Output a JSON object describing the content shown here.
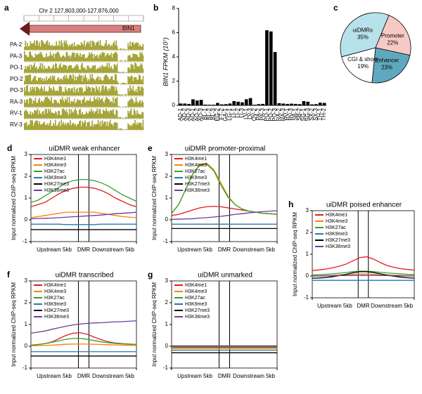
{
  "panel_a": {
    "label": "a",
    "title": "Chr 2 127,803,000-127,876,000",
    "gene_label": "BIN1",
    "tracks": [
      "PA-2",
      "PA-3",
      "PO-1",
      "PO-2",
      "PO-3",
      "RA-3",
      "RV-1",
      "RV-3"
    ],
    "track_color": "#a5a53b",
    "arrow_fill": "#d88080",
    "arrow_stroke": "#6a1b1b"
  },
  "panel_b": {
    "label": "b",
    "ylabel": "BIN1 FPKM (10^7)",
    "yticks": [
      0,
      2,
      4,
      6,
      8
    ],
    "ylim": [
      0,
      8
    ],
    "bar_color": "#000000",
    "categories": [
      "AD-1",
      "AD-2",
      "AD-3",
      "AO-1",
      "AO-2",
      "AO-3",
      "BL-1",
      "BL-2",
      "BL-3",
      "EG-2",
      "FT-2",
      "GA-1",
      "LG-1",
      "LI-1",
      "LI-2",
      "LI-3",
      "LV-1",
      "LV-3",
      "OV-2",
      "PA-2",
      "PA-3",
      "PO-1",
      "PO-2",
      "PO-3",
      "RA-2",
      "RA-3",
      "RV-1",
      "RV-3",
      "SB-1",
      "SB-2",
      "SG-1",
      "SG-3",
      "SX-2",
      "SX-3",
      "TH-1",
      "TH-2"
    ],
    "values": [
      0.15,
      0.15,
      0.12,
      0.5,
      0.4,
      0.45,
      0.06,
      0.05,
      0.05,
      0.2,
      0.08,
      0.1,
      0.15,
      0.35,
      0.3,
      0.25,
      0.5,
      0.6,
      0.05,
      0.1,
      0.12,
      6.2,
      6.1,
      4.4,
      0.18,
      0.15,
      0.12,
      0.14,
      0.12,
      0.1,
      0.35,
      0.3,
      0.08,
      0.1,
      0.22,
      0.2
    ]
  },
  "panel_c": {
    "label": "c",
    "slices": [
      {
        "label": "uiDMRs 35%",
        "value": 35,
        "color": "#b7e2eb"
      },
      {
        "label": "Promoter 22%",
        "value": 22,
        "color": "#f7c9c5"
      },
      {
        "label": "Enhancer 23%",
        "value": 23,
        "color": "#5fa9bf"
      },
      {
        "label": "CGI & shore 19%",
        "value": 19,
        "color": "#ffffff"
      }
    ],
    "stroke": "#000000",
    "label_fontsize": 8
  },
  "chip_panels": {
    "ylabel": "Input normalized ChIP-seq RPKM",
    "legend": [
      {
        "name": "H3K4me1",
        "color": "#e31a1c"
      },
      {
        "name": "H3K4me3",
        "color": "#ff7f00"
      },
      {
        "name": "H3K27ac",
        "color": "#33a02c"
      },
      {
        "name": "H3K9me3",
        "color": "#1f78b4"
      },
      {
        "name": "H3K27me3",
        "color": "#000000"
      },
      {
        "name": "H3K36me3",
        "color": "#6a3d9a"
      }
    ],
    "xlabels": [
      "Upstream 5kb",
      "DMR",
      "Downstream 5kb"
    ],
    "dmr_lines": "#000000",
    "panels": {
      "d": {
        "label": "d",
        "title": "uiDMR weak enhancer",
        "ylim": [
          -1,
          3
        ],
        "yticks": [
          -1,
          0,
          1,
          2,
          3
        ],
        "series": {
          "H3K4me1": [
            0.6,
            0.7,
            0.8,
            1.0,
            1.2,
            1.35,
            1.45,
            1.5,
            1.5,
            1.45,
            1.35,
            1.2,
            1.0,
            0.85,
            0.7,
            0.6
          ],
          "H3K4me3": [
            0.1,
            0.15,
            0.2,
            0.25,
            0.3,
            0.35,
            0.35,
            0.35,
            0.35,
            0.35,
            0.3,
            0.25,
            0.2,
            0.15,
            0.12,
            0.1
          ],
          "H3K27ac": [
            0.8,
            0.9,
            1.1,
            1.3,
            1.5,
            1.7,
            1.8,
            1.85,
            1.85,
            1.8,
            1.7,
            1.55,
            1.35,
            1.15,
            1.0,
            0.85
          ],
          "H3K9me3": [
            -0.2,
            -0.2,
            -0.2,
            -0.2,
            -0.2,
            -0.22,
            -0.22,
            -0.22,
            -0.22,
            -0.22,
            -0.2,
            -0.2,
            -0.2,
            -0.2,
            -0.2,
            -0.2
          ],
          "H3K27me3": [
            -0.45,
            -0.45,
            -0.45,
            -0.45,
            -0.45,
            -0.45,
            -0.45,
            -0.45,
            -0.45,
            -0.45,
            -0.45,
            -0.45,
            -0.45,
            -0.45,
            -0.45,
            -0.45
          ],
          "H3K36me3": [
            0.05,
            0.06,
            0.07,
            0.08,
            0.1,
            0.12,
            0.14,
            0.16,
            0.18,
            0.2,
            0.22,
            0.25,
            0.28,
            0.3,
            0.32,
            0.35
          ]
        }
      },
      "e": {
        "label": "e",
        "title": "uiDMR promoter-proximal",
        "ylim": [
          -1,
          3
        ],
        "yticks": [
          -1,
          0,
          1,
          2,
          3
        ],
        "series": {
          "H3K4me1": [
            0.2,
            0.25,
            0.35,
            0.45,
            0.55,
            0.6,
            0.62,
            0.6,
            0.55,
            0.5,
            0.45,
            0.4,
            0.35,
            0.3,
            0.28,
            0.25
          ],
          "H3K4me3": [
            0.3,
            0.7,
            1.4,
            2.1,
            2.55,
            2.6,
            2.3,
            1.7,
            1.1,
            0.7,
            0.5,
            0.4,
            0.35,
            0.3,
            0.28,
            0.25
          ],
          "H3K27ac": [
            0.3,
            0.7,
            1.4,
            2.1,
            2.5,
            2.55,
            2.25,
            1.6,
            1.05,
            0.7,
            0.5,
            0.4,
            0.35,
            0.3,
            0.28,
            0.25
          ],
          "H3K9me3": [
            -0.2,
            -0.2,
            -0.2,
            -0.2,
            -0.2,
            -0.2,
            -0.2,
            -0.2,
            -0.2,
            -0.2,
            -0.2,
            -0.2,
            -0.2,
            -0.2,
            -0.2,
            -0.2
          ],
          "H3K27me3": [
            -0.4,
            -0.4,
            -0.4,
            -0.4,
            -0.4,
            -0.4,
            -0.4,
            -0.4,
            -0.4,
            -0.4,
            -0.4,
            -0.4,
            -0.4,
            -0.4,
            -0.4,
            -0.4
          ],
          "H3K36me3": [
            0.02,
            0.03,
            0.04,
            0.05,
            0.08,
            0.1,
            0.13,
            0.16,
            0.2,
            0.25,
            0.28,
            0.32,
            0.35,
            0.38,
            0.4,
            0.42
          ]
        }
      },
      "f": {
        "label": "f",
        "title": "uiDMR transcribed",
        "ylim": [
          -1,
          3
        ],
        "yticks": [
          -1,
          0,
          1,
          2,
          3
        ],
        "series": {
          "H3K4me1": [
            0.05,
            0.08,
            0.12,
            0.2,
            0.35,
            0.5,
            0.6,
            0.62,
            0.55,
            0.42,
            0.3,
            0.2,
            0.15,
            0.12,
            0.1,
            0.08
          ],
          "H3K4me3": [
            0.02,
            0.03,
            0.04,
            0.05,
            0.07,
            0.09,
            0.1,
            0.1,
            0.1,
            0.09,
            0.08,
            0.07,
            0.06,
            0.05,
            0.04,
            0.03
          ],
          "H3K27ac": [
            0.05,
            0.08,
            0.12,
            0.18,
            0.25,
            0.32,
            0.36,
            0.36,
            0.32,
            0.26,
            0.2,
            0.16,
            0.13,
            0.11,
            0.09,
            0.08
          ],
          "H3K9me3": [
            -0.25,
            -0.25,
            -0.25,
            -0.25,
            -0.25,
            -0.25,
            -0.25,
            -0.25,
            -0.25,
            -0.25,
            -0.25,
            -0.25,
            -0.25,
            -0.25,
            -0.25,
            -0.25
          ],
          "H3K27me3": [
            -0.45,
            -0.45,
            -0.45,
            -0.45,
            -0.45,
            -0.45,
            -0.45,
            -0.45,
            -0.45,
            -0.45,
            -0.45,
            -0.45,
            -0.45,
            -0.45,
            -0.45,
            -0.45
          ],
          "H3K36me3": [
            0.6,
            0.65,
            0.7,
            0.78,
            0.85,
            0.92,
            0.98,
            1.02,
            1.05,
            1.07,
            1.08,
            1.1,
            1.12,
            1.13,
            1.15,
            1.17
          ]
        }
      },
      "g": {
        "label": "g",
        "title": "uiDMR unmarked",
        "ylim": [
          -1,
          3
        ],
        "yticks": [
          -1,
          0,
          1,
          2,
          3
        ],
        "series": {
          "H3K4me1": [
            -0.05,
            -0.05,
            -0.05,
            -0.05,
            -0.05,
            -0.05,
            -0.05,
            -0.05,
            -0.05,
            -0.05,
            -0.05,
            -0.05,
            -0.05,
            -0.05,
            -0.05,
            -0.05
          ],
          "H3K4me3": [
            -0.1,
            -0.1,
            -0.1,
            -0.1,
            -0.1,
            -0.1,
            -0.1,
            -0.1,
            -0.1,
            -0.1,
            -0.1,
            -0.1,
            -0.1,
            -0.1,
            -0.1,
            -0.1
          ],
          "H3K27ac": [
            -0.02,
            -0.02,
            -0.02,
            -0.02,
            -0.02,
            -0.02,
            -0.02,
            -0.02,
            -0.02,
            -0.02,
            -0.02,
            -0.02,
            -0.02,
            -0.02,
            -0.02,
            -0.02
          ],
          "H3K9me3": [
            -0.18,
            -0.18,
            -0.18,
            -0.18,
            -0.18,
            -0.18,
            -0.18,
            -0.18,
            -0.18,
            -0.18,
            -0.18,
            -0.18,
            -0.18,
            -0.18,
            -0.18,
            -0.18
          ],
          "H3K27me3": [
            -0.3,
            -0.3,
            -0.3,
            -0.3,
            -0.3,
            -0.3,
            -0.3,
            -0.3,
            -0.3,
            -0.3,
            -0.3,
            -0.3,
            -0.3,
            -0.3,
            -0.3,
            -0.3
          ],
          "H3K36me3": [
            0.02,
            0.02,
            0.02,
            0.02,
            0.02,
            0.02,
            0.02,
            0.02,
            0.02,
            0.02,
            0.02,
            0.02,
            0.02,
            0.02,
            0.02,
            0.02
          ]
        }
      },
      "h": {
        "label": "h",
        "title": "uiDMR poised enhancer",
        "ylim": [
          -1,
          3
        ],
        "yticks": [
          -1,
          0,
          1,
          2,
          3
        ],
        "series": {
          "H3K4me1": [
            0.25,
            0.28,
            0.32,
            0.38,
            0.45,
            0.55,
            0.7,
            0.85,
            0.88,
            0.78,
            0.62,
            0.48,
            0.4,
            0.34,
            0.3,
            0.27
          ],
          "H3K4me3": [
            0.0,
            0.01,
            0.02,
            0.03,
            0.05,
            0.06,
            0.08,
            0.09,
            0.09,
            0.08,
            0.07,
            0.05,
            0.04,
            0.03,
            0.02,
            0.01
          ],
          "H3K27ac": [
            0.05,
            0.06,
            0.08,
            0.1,
            0.13,
            0.16,
            0.2,
            0.22,
            0.22,
            0.2,
            0.17,
            0.14,
            0.12,
            0.1,
            0.08,
            0.07
          ],
          "H3K9me3": [
            -0.2,
            -0.2,
            -0.2,
            -0.2,
            -0.2,
            -0.2,
            -0.2,
            -0.2,
            -0.2,
            -0.2,
            -0.2,
            -0.2,
            -0.2,
            -0.2,
            -0.2,
            -0.2
          ],
          "H3K27me3": [
            -0.1,
            -0.09,
            -0.07,
            -0.03,
            0.02,
            0.08,
            0.15,
            0.2,
            0.2,
            0.16,
            0.1,
            0.04,
            -0.01,
            -0.05,
            -0.08,
            -0.1
          ],
          "H3K36me3": [
            0.0,
            0.0,
            0.01,
            0.01,
            0.02,
            0.02,
            0.03,
            0.03,
            0.03,
            0.03,
            0.02,
            0.02,
            0.01,
            0.01,
            0.0,
            0.0
          ]
        }
      }
    }
  }
}
